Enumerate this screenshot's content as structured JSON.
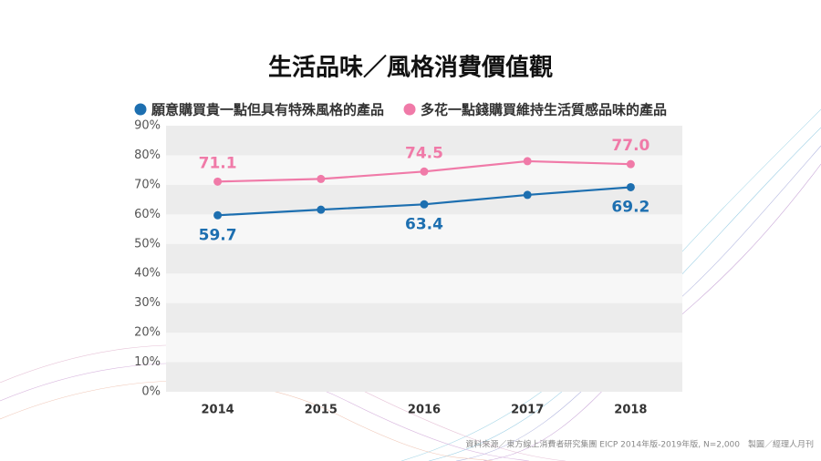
{
  "chart_data": {
    "type": "line",
    "title": "生活品味／風格消費價值觀",
    "categories": [
      "2014",
      "2015",
      "2016",
      "2017",
      "2018"
    ],
    "series": [
      {
        "name": "願意購買貴一點但具有特殊風格的產品",
        "color": "#1d6fb0",
        "values": [
          59.7,
          61.6,
          63.4,
          66.6,
          69.2
        ],
        "value_labels": [
          "59.7",
          null,
          "63.4",
          null,
          "69.2"
        ]
      },
      {
        "name": "多花一點錢購買維持生活質感品味的產品",
        "color": "#f07aa8",
        "values": [
          71.1,
          72.0,
          74.5,
          78.0,
          77.0
        ],
        "value_labels": [
          "71.1",
          null,
          "74.5",
          null,
          "77.0"
        ]
      }
    ],
    "ylim": [
      0,
      90
    ],
    "yticks": [
      {
        "value": 0,
        "label": "0%"
      },
      {
        "value": 10,
        "label": "10%"
      },
      {
        "value": 20,
        "label": "20%"
      },
      {
        "value": 30,
        "label": "30%"
      },
      {
        "value": 40,
        "label": "40%"
      },
      {
        "value": 50,
        "label": "50%"
      },
      {
        "value": 60,
        "label": "60%"
      },
      {
        "value": 70,
        "label": "70%"
      },
      {
        "value": 80,
        "label": "80%"
      },
      {
        "value": 90,
        "label": "90%"
      }
    ],
    "grid": true,
    "source": "資料來源／東方線上消費者研究集團 EICP 2014年版-2019年版, N=2,000　製圖／經理人月刊"
  }
}
